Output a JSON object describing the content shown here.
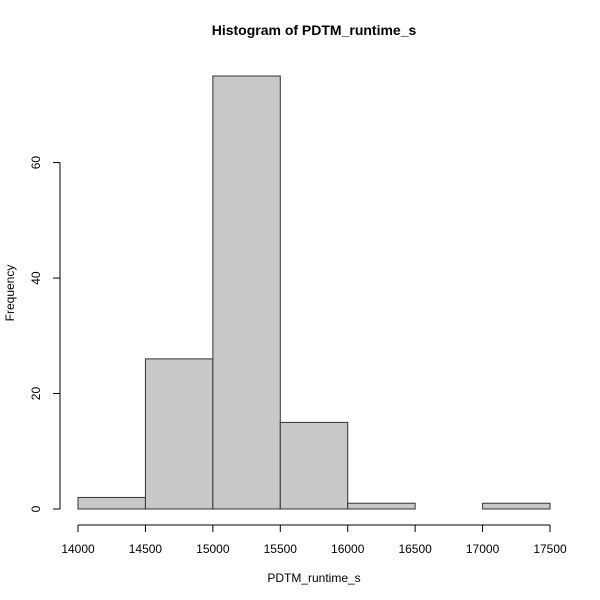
{
  "chart_data": {
    "type": "bar",
    "title": "Histogram of PDTM_runtime_s",
    "xlabel": "PDTM_runtime_s",
    "ylabel": "Frequency",
    "bins": [
      {
        "start": 14000,
        "end": 14500,
        "count": 2
      },
      {
        "start": 14500,
        "end": 15000,
        "count": 26
      },
      {
        "start": 15000,
        "end": 15500,
        "count": 75
      },
      {
        "start": 15500,
        "end": 16000,
        "count": 15
      },
      {
        "start": 16000,
        "end": 16500,
        "count": 1
      },
      {
        "start": 16500,
        "end": 17000,
        "count": 0
      },
      {
        "start": 17000,
        "end": 17500,
        "count": 1
      }
    ],
    "xlim": [
      14000,
      17500
    ],
    "ylim": [
      0,
      75
    ],
    "x_ticks": [
      "14000",
      "14500",
      "15000",
      "15500",
      "16000",
      "16500",
      "17000",
      "17500"
    ],
    "y_ticks": [
      "0",
      "20",
      "40",
      "60"
    ],
    "bar_color": "#C8C8C8",
    "bar_border_color": "#333333",
    "grid": false,
    "legend": "none"
  }
}
